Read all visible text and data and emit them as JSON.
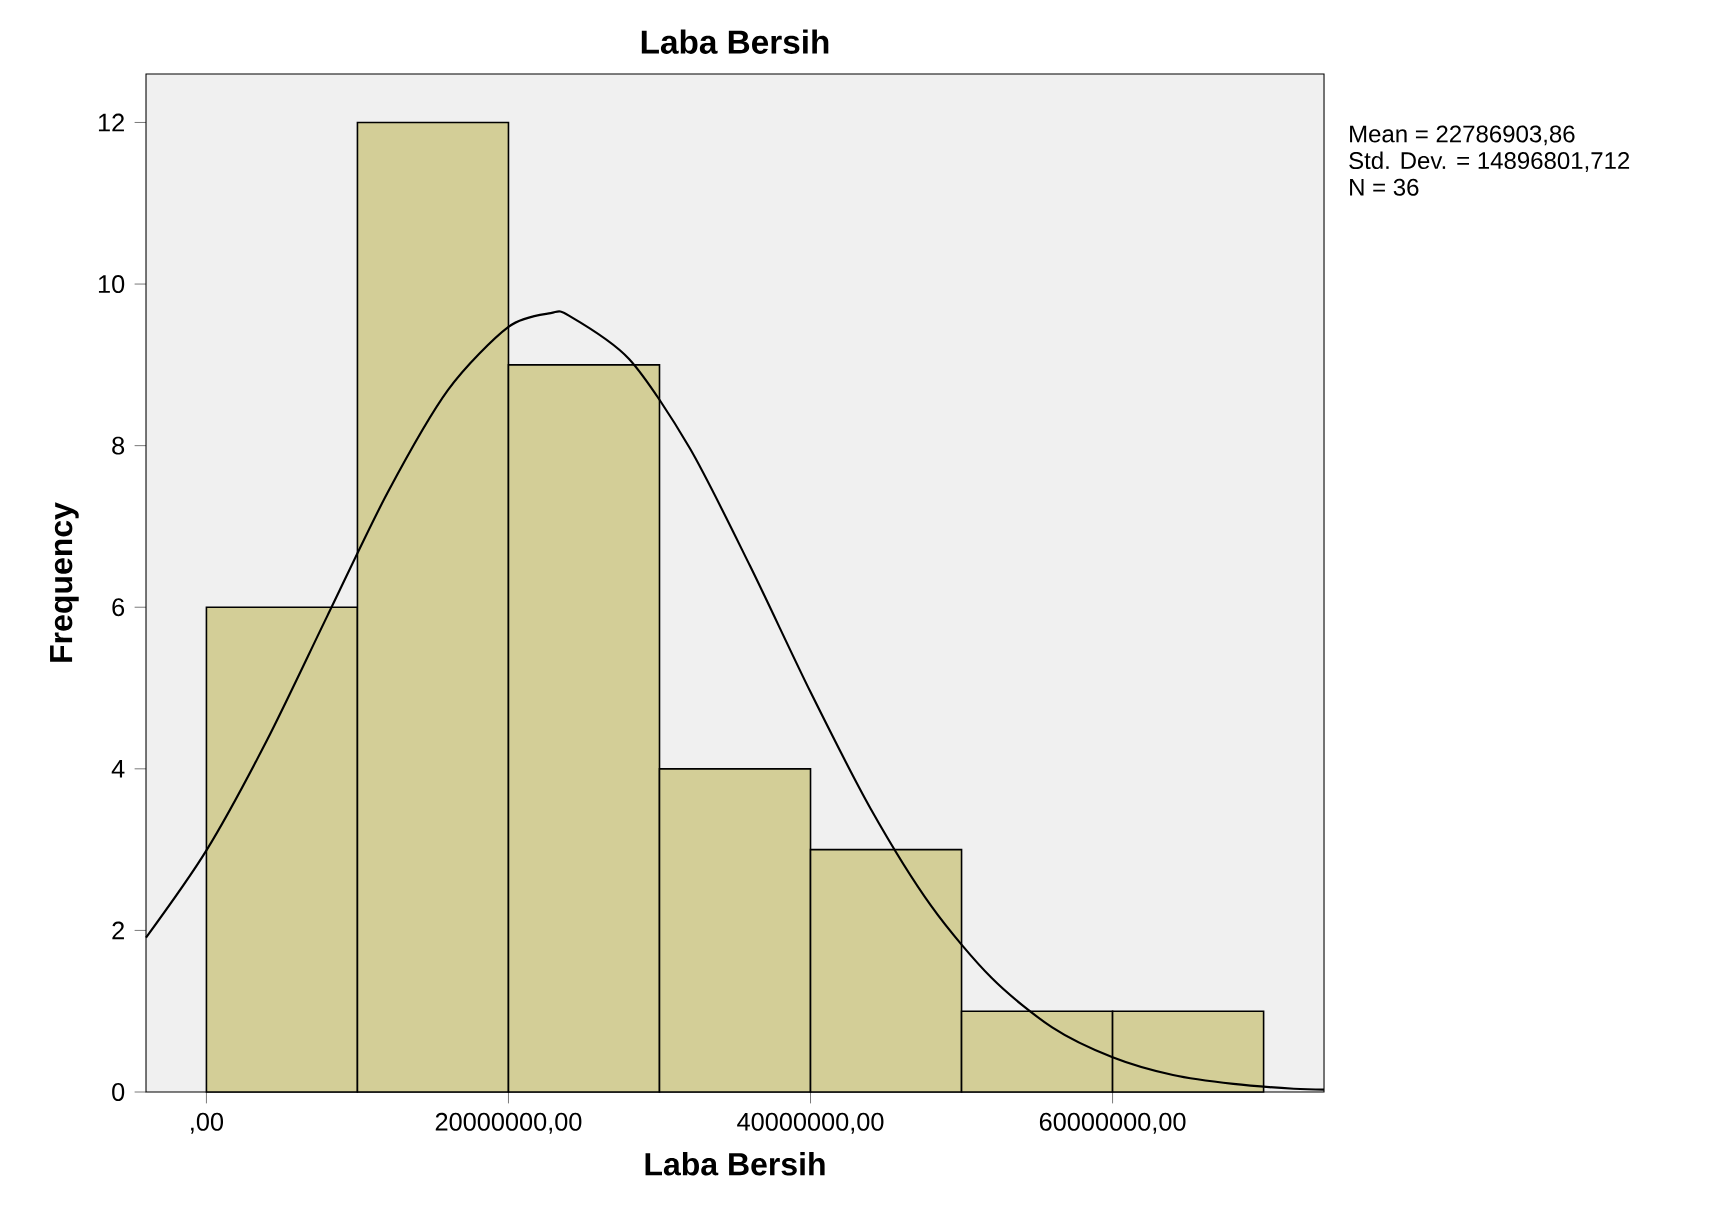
{
  "chart_data": {
    "type": "histogram",
    "title": "Laba Bersih",
    "xlabel": "Laba Bersih",
    "ylabel": "Frequency",
    "annotations": [
      "Mean = 22786903,86",
      "Std. Dev. = 14896801,712",
      "N = 36"
    ],
    "series": [
      {
        "color": "#d3ce97",
        "bins": [
          0,
          10000000,
          20000000,
          30000000,
          40000000,
          50000000,
          60000000,
          70000000
        ],
        "values": [
          6,
          12,
          9,
          4,
          3,
          1,
          1
        ]
      },
      {
        "type": "line",
        "color": "#000000",
        "x": [
          -4000000,
          0,
          4000000,
          8000000,
          12000000,
          16000000,
          20000000,
          22800000,
          24000000,
          28000000,
          32000000,
          36000000,
          40000000,
          44000000,
          48000000,
          52000000,
          56000000,
          60000000,
          64000000,
          68000000,
          72000000,
          74000000
        ],
        "values": [
          1.91,
          2.99,
          4.35,
          5.89,
          7.42,
          8.69,
          9.47,
          9.64,
          9.61,
          9.07,
          7.97,
          6.51,
          4.95,
          3.5,
          2.3,
          1.41,
          0.8,
          0.43,
          0.21,
          0.1,
          0.04,
          0.03
        ]
      }
    ],
    "xlim": [
      -4000000,
      74000000
    ],
    "ylim": [
      0,
      12.6
    ],
    "xticks": [
      {
        "value": 0,
        "label": ",00"
      },
      {
        "value": 20000000,
        "label": "20000000,00"
      },
      {
        "value": 40000000,
        "label": "40000000,00"
      },
      {
        "value": 60000000,
        "label": "60000000,00"
      }
    ],
    "yticks": [
      0,
      2,
      4,
      6,
      8,
      10,
      12
    ],
    "grid": false
  }
}
